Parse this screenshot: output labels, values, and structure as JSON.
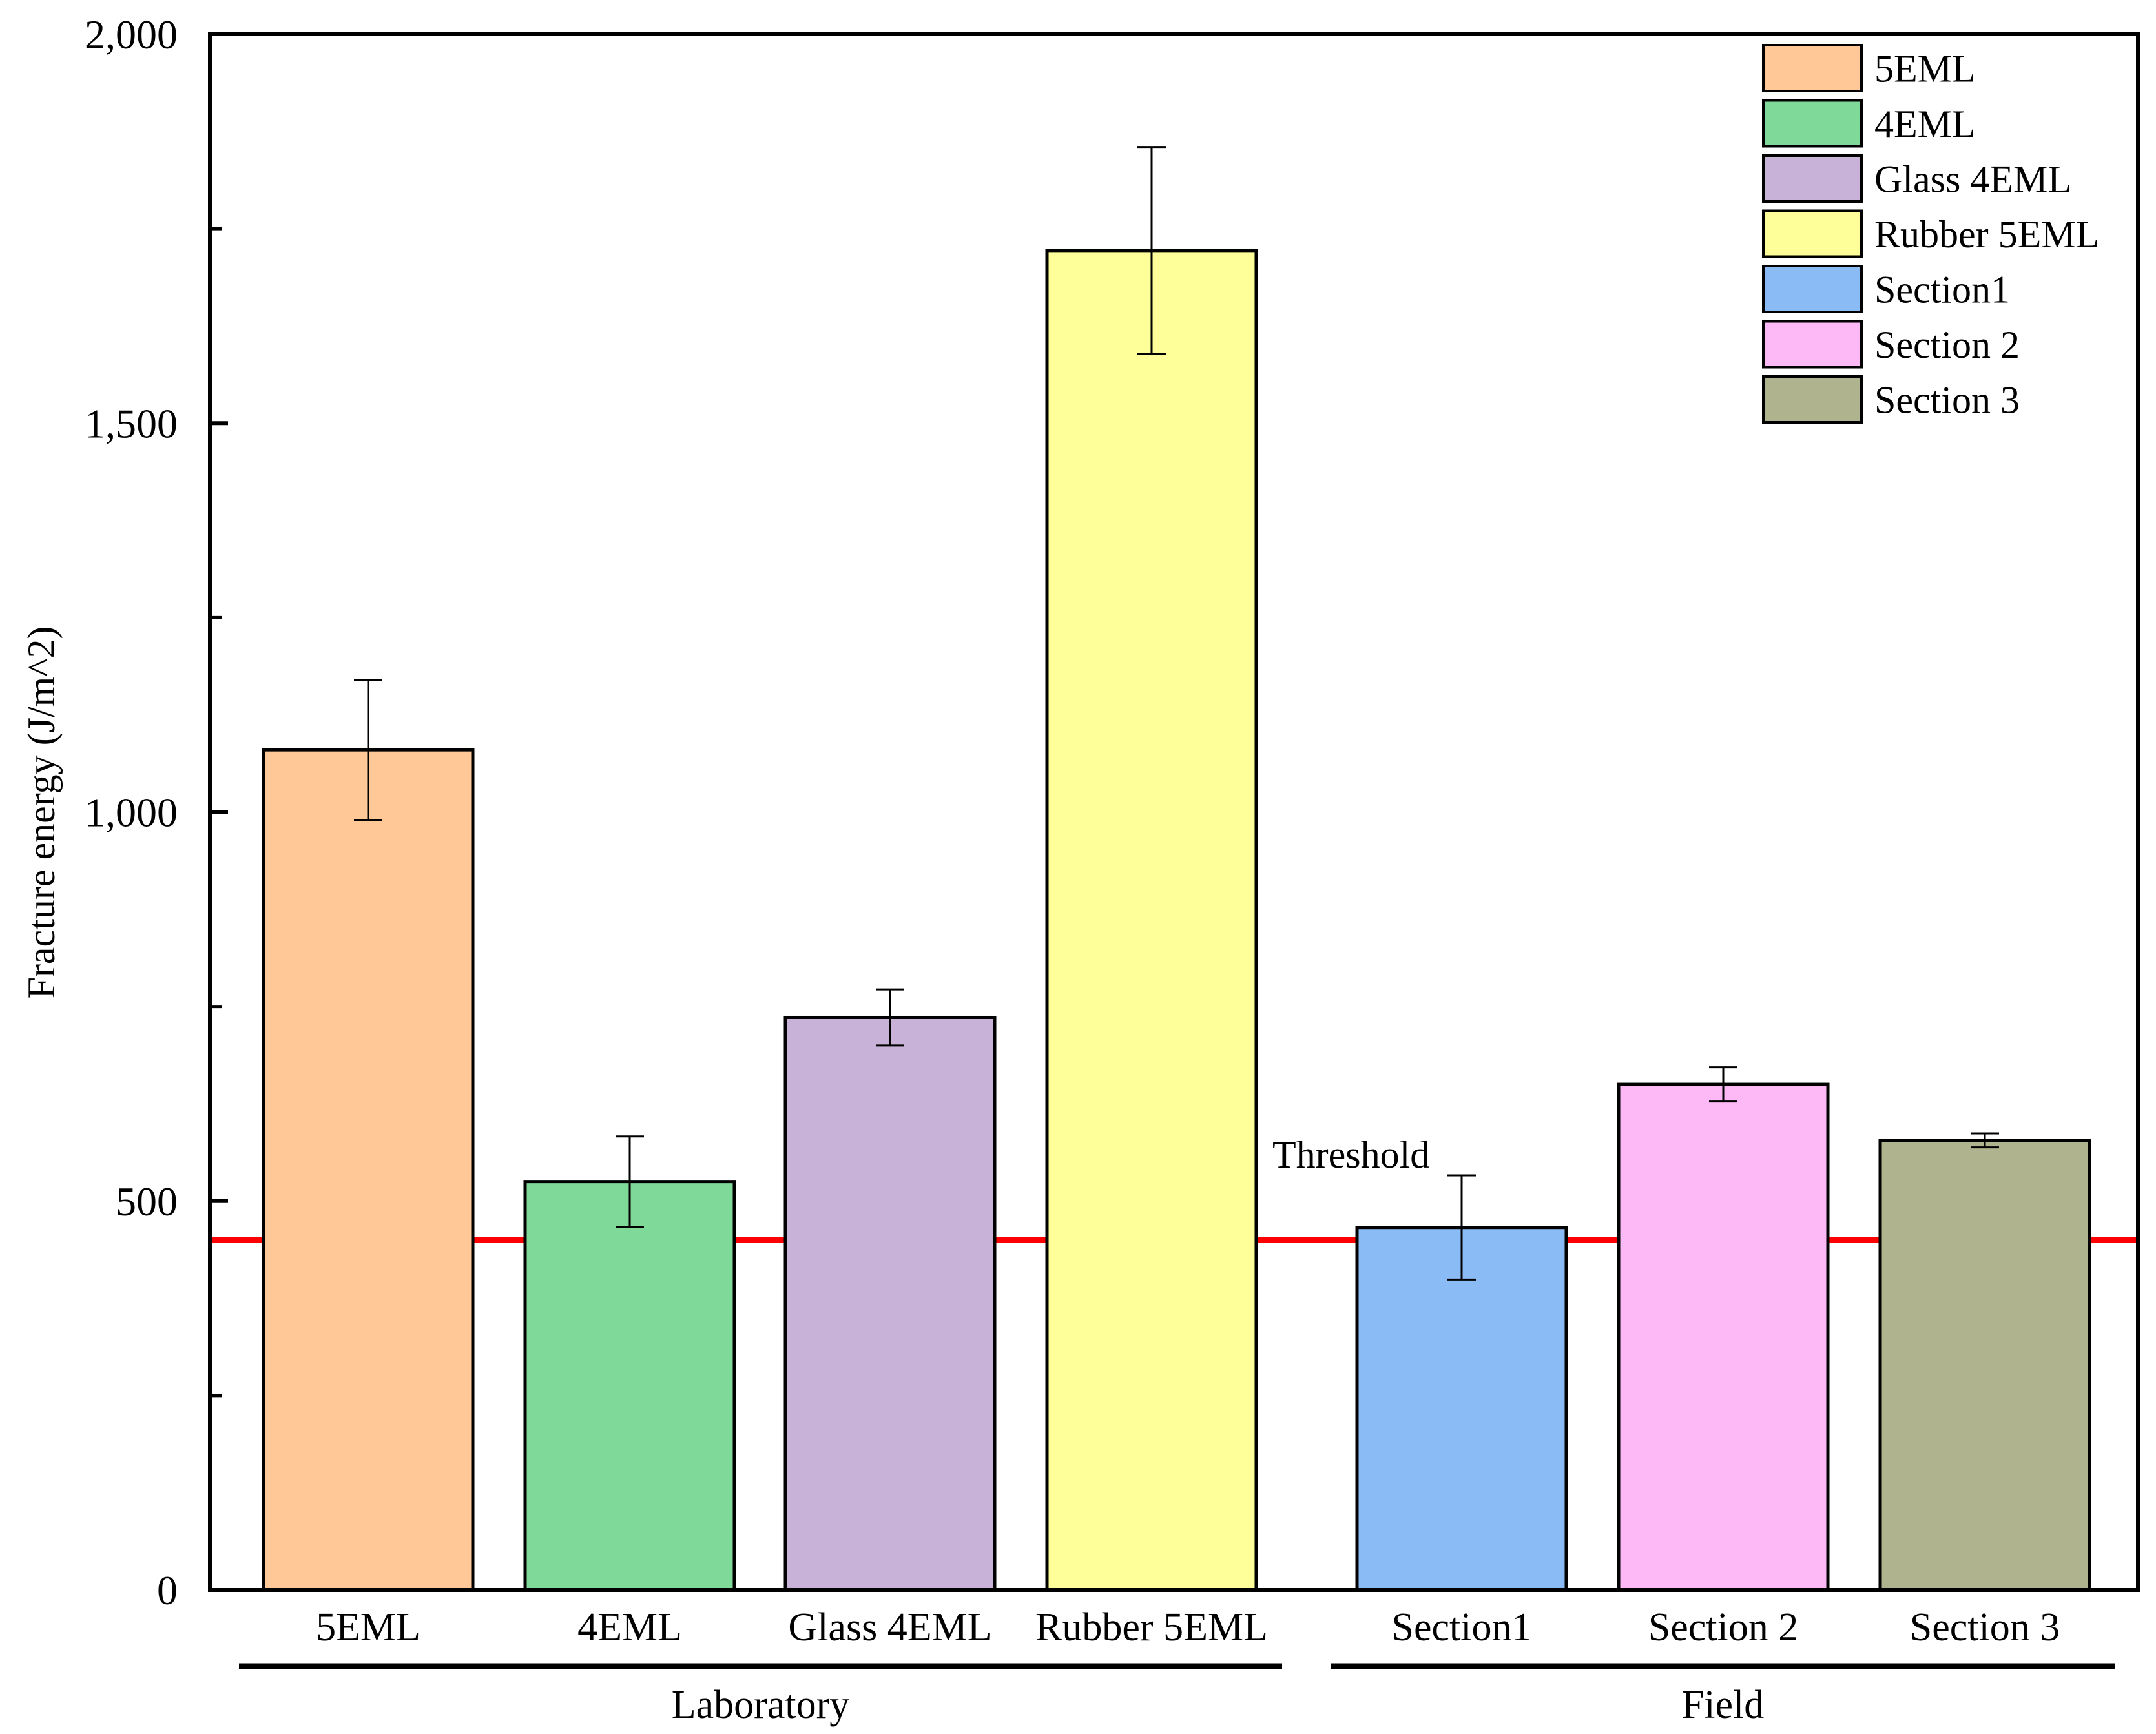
{
  "chart_data": {
    "type": "bar",
    "title": "",
    "xlabel": "",
    "ylabel": "Fracture energy (J/m^2)",
    "ylim": [
      0,
      2000
    ],
    "y_ticks": [
      "0",
      "500",
      "1,000",
      "1,500",
      "2,000"
    ],
    "y_tick_values": [
      0,
      500,
      1000,
      1500,
      2000
    ],
    "y_minor_tick_values": [
      250,
      750,
      1250,
      1750
    ],
    "categories": [
      "5EML",
      "4EML",
      "Glass 4EML",
      "Rubber 5EML",
      "Section1",
      "Section 2",
      "Section 3"
    ],
    "values": [
      1080,
      525,
      736,
      1722,
      466,
      650,
      578
    ],
    "errors": [
      90,
      58,
      36,
      133,
      67,
      22,
      9
    ],
    "colors": [
      "#FFC896",
      "#7FD998",
      "#C8B2D7",
      "#FFFF99",
      "#8BBBF5",
      "#FDB8F6",
      "#B0B48E"
    ],
    "groups": [
      {
        "label": "Laboratory",
        "categories": [
          "5EML",
          "4EML",
          "Glass 4EML",
          "Rubber 5EML"
        ]
      },
      {
        "label": "Field",
        "categories": [
          "Section1",
          "Section 2",
          "Section 3"
        ]
      }
    ],
    "threshold": {
      "label": "Threshold",
      "value": 450,
      "color": "#FF0000"
    },
    "legend": {
      "placement": "top-right",
      "entries": [
        "5EML",
        "4EML",
        "Glass 4EML",
        "Rubber 5EML",
        "Section1",
        "Section 2",
        "Section 3"
      ]
    },
    "grid": false
  }
}
